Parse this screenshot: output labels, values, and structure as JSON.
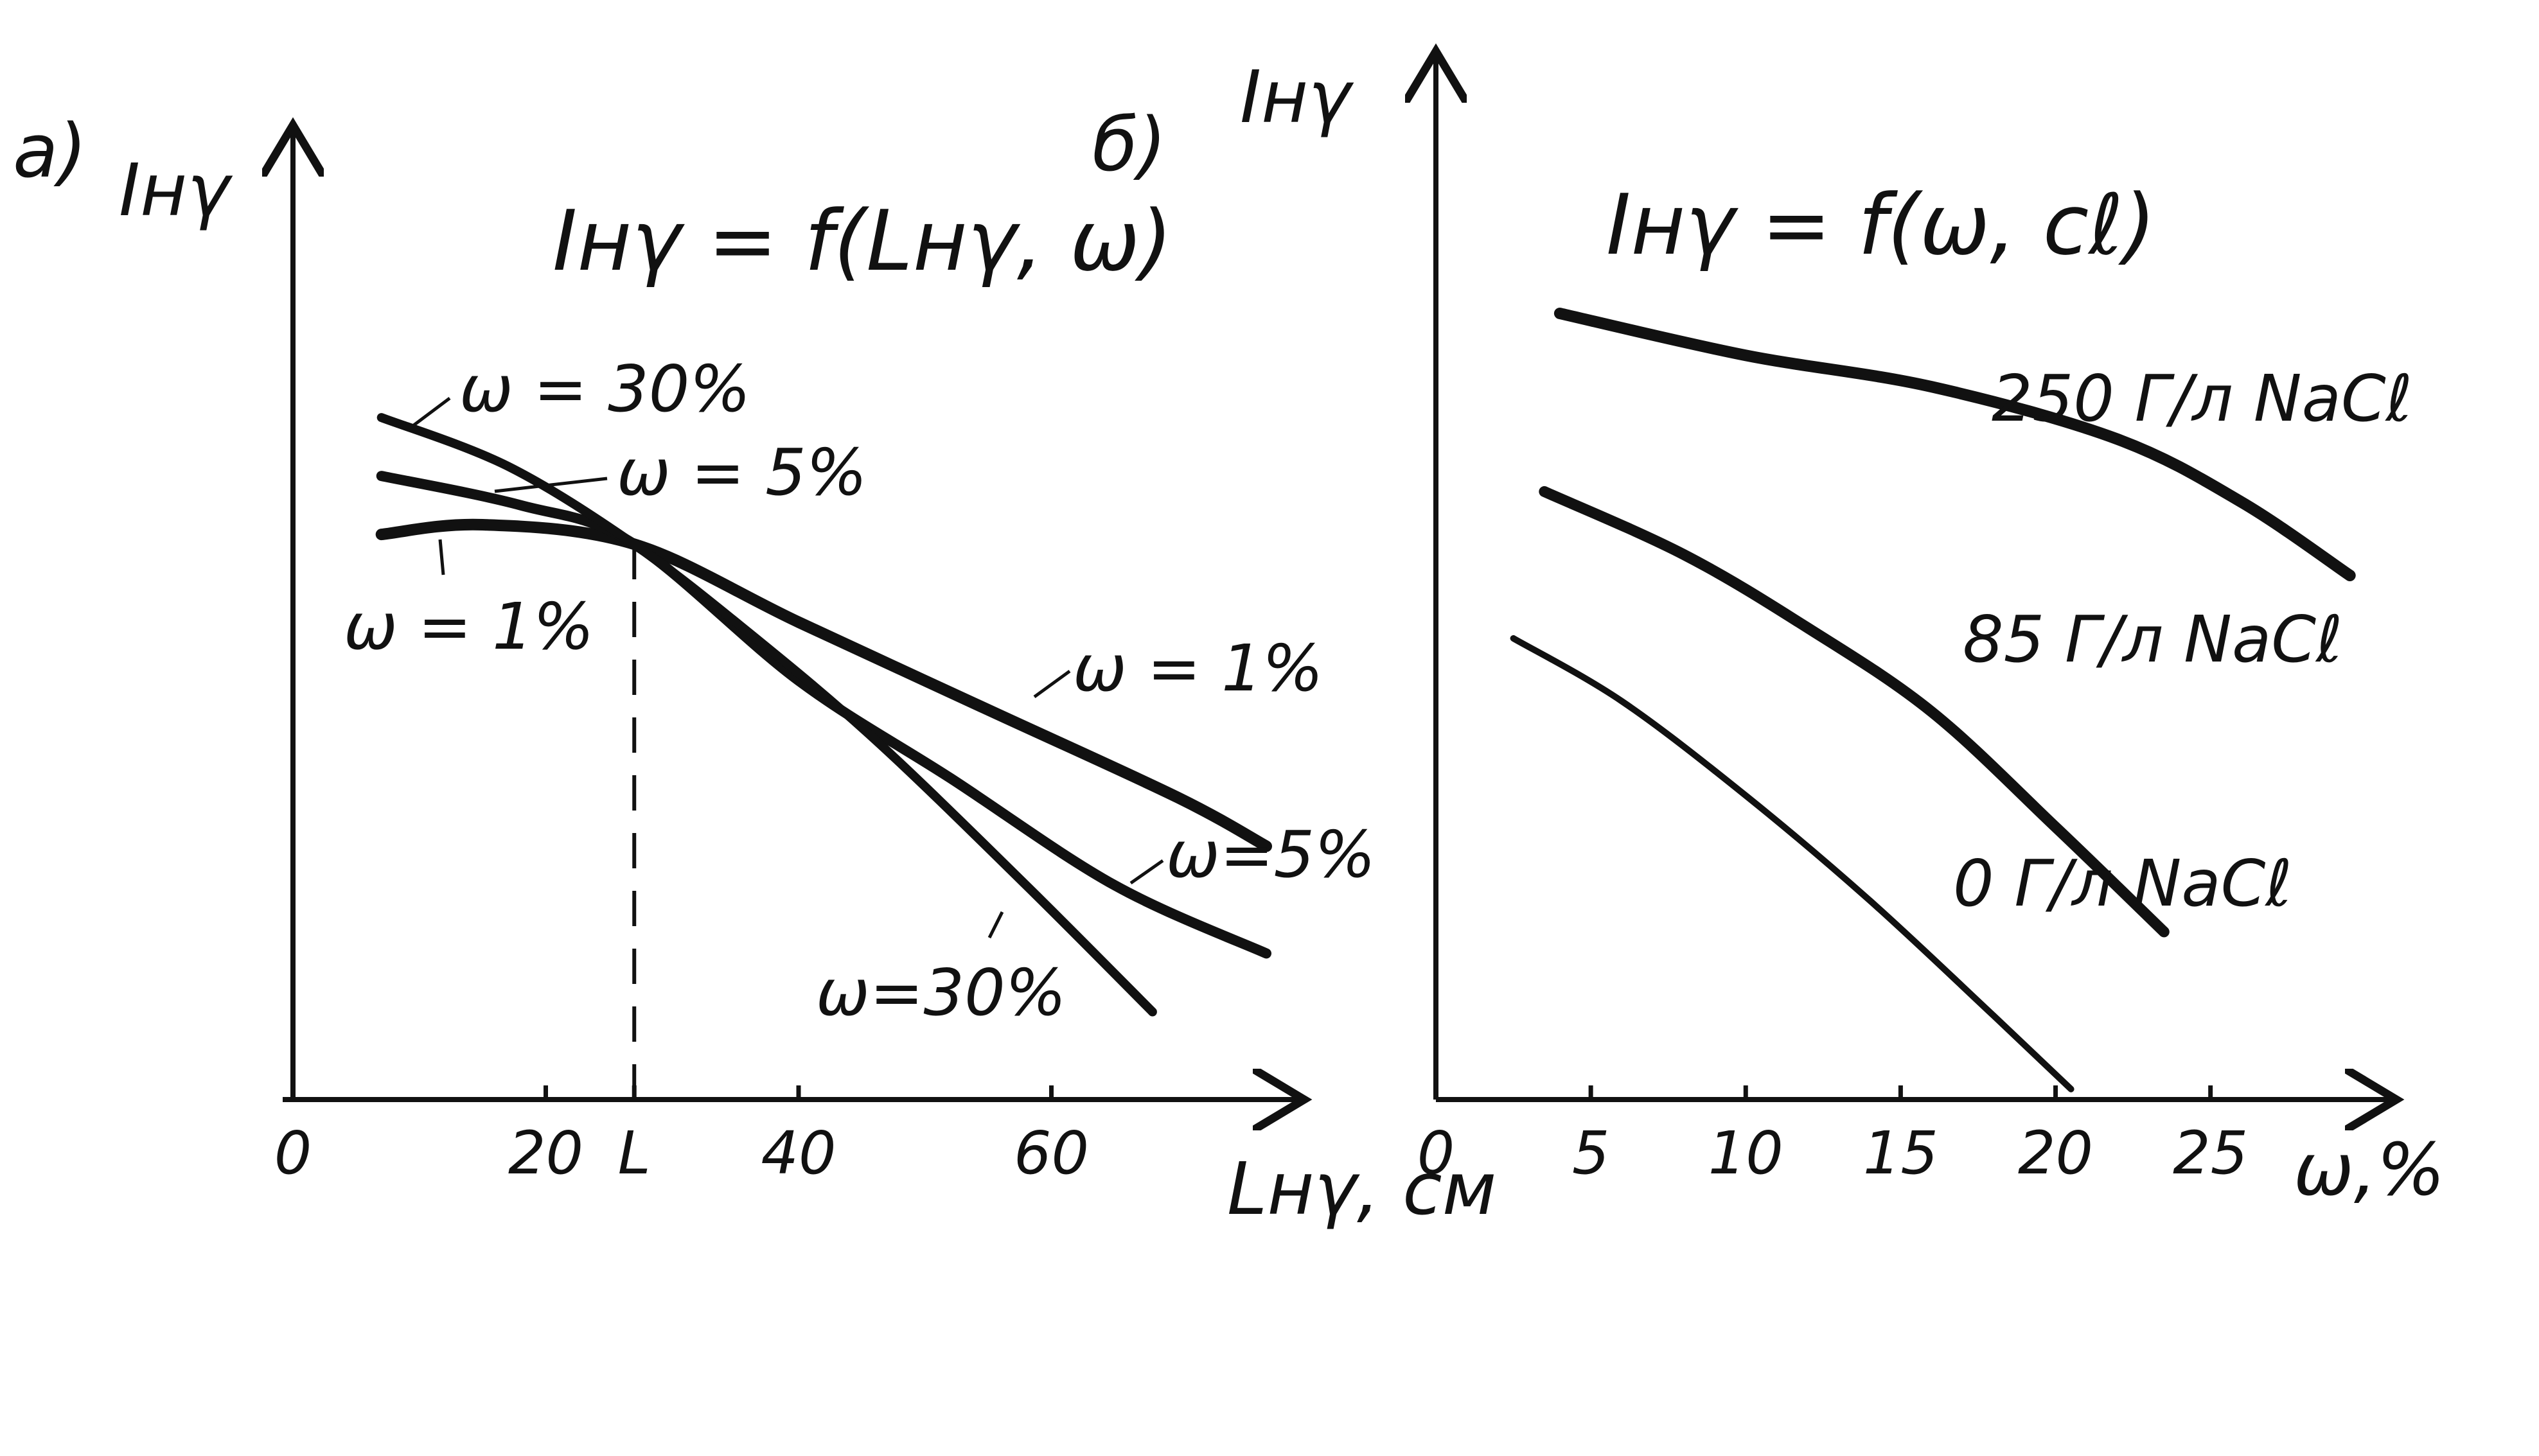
{
  "colors": {
    "ink": "#111111",
    "background": "#ffffff"
  },
  "chart_data": [
    {
      "panel": "a)",
      "type": "line",
      "title": "Iнγ = f(Lнγ, ω)",
      "ylabel": "Iнγ",
      "xlabel": "Lнγ, см",
      "xlim": [
        0,
        80
      ],
      "ylim": [
        0,
        10
      ],
      "xticks": [
        "0",
        "20",
        "L",
        "40",
        "60"
      ],
      "xtick_values": [
        0,
        20,
        27,
        40,
        60
      ],
      "vline_label": "L",
      "vline_x": 27,
      "series": [
        {
          "name": "ω = 1%",
          "label_right": "ω = 1%",
          "label_left": "ω = 1%",
          "x": [
            7,
            15,
            27,
            40,
            55,
            70,
            77
          ],
          "y": [
            5.8,
            5.9,
            5.7,
            4.9,
            4.0,
            3.1,
            2.6
          ]
        },
        {
          "name": "ω = 5%",
          "label_right": "ω=5%",
          "label_left": "ω = 5%",
          "x": [
            7,
            18,
            27,
            40,
            52,
            65,
            77
          ],
          "y": [
            6.4,
            6.1,
            5.7,
            4.3,
            3.3,
            2.2,
            1.5
          ]
        },
        {
          "name": "ω = 30%",
          "label_right": "ω=30%",
          "label_left": "ω = 30%",
          "x": [
            7,
            17,
            27,
            36,
            46,
            58,
            68
          ],
          "y": [
            7.0,
            6.5,
            5.7,
            4.8,
            3.7,
            2.2,
            0.9
          ]
        }
      ]
    },
    {
      "panel": "б)",
      "type": "line",
      "title": "Iнγ = f(ω, cℓ)",
      "ylabel": "Iнγ",
      "xlabel": "ω,%",
      "xlim": [
        0,
        31
      ],
      "ylim": [
        0,
        10
      ],
      "xticks": [
        "0",
        "5",
        "10",
        "15",
        "20",
        "25"
      ],
      "xtick_values": [
        0,
        5,
        10,
        15,
        20,
        25
      ],
      "series": [
        {
          "name": "250 Г/л NaCℓ",
          "x": [
            4,
            10,
            16,
            22,
            26,
            29.5
          ],
          "y": [
            7.5,
            7.1,
            6.8,
            6.3,
            5.7,
            5.0
          ]
        },
        {
          "name": "85 Г/л NaCℓ",
          "x": [
            3.5,
            8,
            12,
            16,
            20,
            23.5
          ],
          "y": [
            5.8,
            5.2,
            4.5,
            3.7,
            2.6,
            1.6
          ]
        },
        {
          "name": "0 Г/л NaCℓ",
          "x": [
            2.5,
            6,
            10,
            14,
            18,
            20.5
          ],
          "y": [
            4.4,
            3.8,
            2.9,
            1.9,
            0.8,
            0.1
          ]
        }
      ]
    }
  ]
}
